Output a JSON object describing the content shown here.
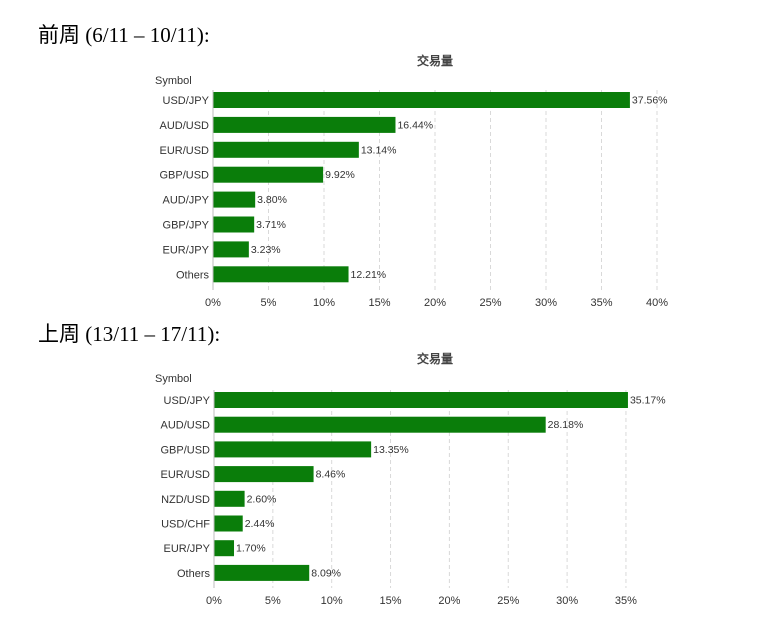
{
  "headings": [
    "前周 (6/11 – 10/11):",
    "上周 (13/11 – 17/11):"
  ],
  "colors": {
    "bar": "#0a7d0a",
    "grid": "#d9d9d9"
  },
  "chart_data": [
    {
      "type": "bar",
      "orientation": "horizontal",
      "title": "交易量",
      "category_axis_label": "Symbol",
      "categories": [
        "USD/JPY",
        "AUD/USD",
        "EUR/USD",
        "GBP/USD",
        "AUD/JPY",
        "GBP/JPY",
        "EUR/JPY",
        "Others"
      ],
      "values": [
        37.56,
        16.44,
        13.14,
        9.92,
        3.8,
        3.71,
        3.23,
        12.21
      ],
      "value_labels": [
        "37.56%",
        "16.44%",
        "13.14%",
        "9.92%",
        "3.80%",
        "3.71%",
        "3.23%",
        "12.21%"
      ],
      "ticks": [
        0,
        5,
        10,
        15,
        20,
        25,
        30,
        35,
        40
      ],
      "tick_labels": [
        "0%",
        "5%",
        "10%",
        "15%",
        "20%",
        "25%",
        "30%",
        "35%",
        "40%"
      ],
      "xlim": [
        0,
        40
      ],
      "grid": true,
      "legend": "none"
    },
    {
      "type": "bar",
      "orientation": "horizontal",
      "title": "交易量",
      "category_axis_label": "Symbol",
      "categories": [
        "USD/JPY",
        "AUD/USD",
        "GBP/USD",
        "EUR/USD",
        "NZD/USD",
        "USD/CHF",
        "EUR/JPY",
        "Others"
      ],
      "values": [
        35.17,
        28.18,
        13.35,
        8.46,
        2.6,
        2.44,
        1.7,
        8.09
      ],
      "value_labels": [
        "35.17%",
        "28.18%",
        "13.35%",
        "8.46%",
        "2.60%",
        "2.44%",
        "1.70%",
        "8.09%"
      ],
      "ticks": [
        0,
        5,
        10,
        15,
        20,
        25,
        30,
        35
      ],
      "tick_labels": [
        "0%",
        "5%",
        "10%",
        "15%",
        "20%",
        "25%",
        "30%",
        "35%"
      ],
      "xlim": [
        0,
        37.5
      ],
      "grid": true,
      "legend": "none"
    }
  ]
}
